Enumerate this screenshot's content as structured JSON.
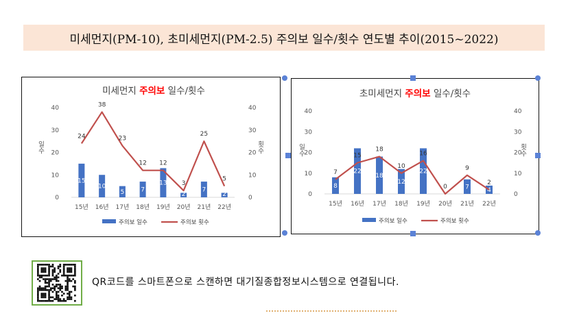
{
  "page_title": "미세먼지(PM-10), 초미세먼지(PM-2.5) 주의보 일수/횟수 연도별 추이(2015~2022)",
  "qr_text": "QR코드를 스마트폰으로 스캔하면 대기질종합정보시스템으로 연결됩니다.",
  "colors": {
    "bar": "#4472c4",
    "line": "#c0504d",
    "highlight": "#ff0000",
    "title_bg": "#fbe5d6"
  },
  "chart_data": [
    {
      "type": "bar",
      "title_prefix": "미세먼지 ",
      "title_highlight": "주의보",
      "title_suffix": " 일수/횟수",
      "categories": [
        "15년",
        "16년",
        "17년",
        "18년",
        "19년",
        "20년",
        "21년",
        "22년"
      ],
      "series": [
        {
          "name": "주의보 일수",
          "type": "bar",
          "values": [
            15,
            10,
            5,
            7,
            13,
            2,
            7,
            2
          ]
        },
        {
          "name": "주의보 횟수",
          "type": "line",
          "values": [
            24,
            38,
            23,
            12,
            12,
            3,
            25,
            5
          ]
        }
      ],
      "ylabel": "일수",
      "y2label": "횟수",
      "ylim": [
        0,
        40
      ],
      "y2lim": [
        0,
        40
      ],
      "yticks": [
        0,
        10,
        20,
        30,
        40
      ],
      "legend": "bottom"
    },
    {
      "type": "bar",
      "title_prefix": "초미세먼지 ",
      "title_highlight": "주의보",
      "title_suffix": " 일수/횟수",
      "categories": [
        "15년",
        "16년",
        "17년",
        "18년",
        "19년",
        "20년",
        "21년",
        "22년"
      ],
      "series": [
        {
          "name": "주의보 일수",
          "type": "bar",
          "values": [
            8,
            22,
            18,
            12,
            22,
            0,
            7,
            4
          ]
        },
        {
          "name": "주의보 횟수",
          "type": "line",
          "values": [
            7,
            15,
            18,
            10,
            16,
            0,
            9,
            2
          ]
        }
      ],
      "ylabel": "일수",
      "y2label": "횟수",
      "ylim": [
        0,
        40
      ],
      "y2lim": [
        0,
        40
      ],
      "yticks": [
        0,
        10,
        20,
        30,
        40
      ],
      "legend": "bottom"
    }
  ]
}
